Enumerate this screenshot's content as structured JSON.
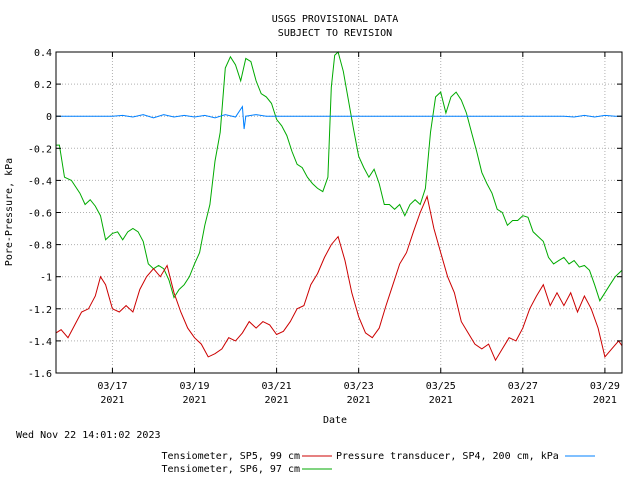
{
  "header": {
    "title_line1": "USGS PROVISIONAL DATA",
    "title_line2": "SUBJECT TO REVISION"
  },
  "footer": {
    "timestamp": "Wed Nov 22 14:01:02 2023"
  },
  "colors": {
    "sp5": "#cc0000",
    "sp6": "#00aa00",
    "sp4": "#0080ff",
    "grid": "#b0b0b0",
    "axes": "#000000"
  },
  "chart_data": {
    "type": "line",
    "xlabel": "Date",
    "ylabel": "Pore-Pressure, kPa",
    "grid": true,
    "legend_placement": "bottom",
    "ylim": [
      -1.6,
      0.4
    ],
    "y_ticks": [
      "0.4",
      "0.2",
      "0",
      "-0.2",
      "-0.4",
      "-0.6",
      "-0.8",
      "-1",
      "-1.2",
      "-1.4",
      "-1.6"
    ],
    "x_ticks": [
      {
        "date": "2021-03-17",
        "label": "03/17",
        "year": "2021"
      },
      {
        "date": "2021-03-19",
        "label": "03/19",
        "year": "2021"
      },
      {
        "date": "2021-03-21",
        "label": "03/21",
        "year": "2021"
      },
      {
        "date": "2021-03-23",
        "label": "03/23",
        "year": "2021"
      },
      {
        "date": "2021-03-25",
        "label": "03/25",
        "year": "2021"
      },
      {
        "date": "2021-03-27",
        "label": "03/27",
        "year": "2021"
      },
      {
        "date": "2021-03-29",
        "label": "03/29",
        "year": "2021"
      }
    ],
    "xlim": [
      "2021-03-15T15:00",
      "2021-03-29T10:00"
    ],
    "legend": [
      {
        "key": "sp5",
        "label": "Tensiometer, SP5, 99 cm"
      },
      {
        "key": "sp4",
        "label": "Pressure transducer, SP4, 200 cm, kPa"
      },
      {
        "key": "sp6",
        "label": "Tensiometer, SP6, 97 cm"
      }
    ],
    "series": [
      {
        "key": "sp6",
        "name": "Tensiometer, SP6, 97 cm",
        "points": [
          [
            "2021-03-15T15:00",
            -0.18
          ],
          [
            "2021-03-15T17:00",
            -0.18
          ],
          [
            "2021-03-15T20:00",
            -0.38
          ],
          [
            "2021-03-16T00:00",
            -0.4
          ],
          [
            "2021-03-16T05:00",
            -0.48
          ],
          [
            "2021-03-16T08:00",
            -0.55
          ],
          [
            "2021-03-16T11:00",
            -0.52
          ],
          [
            "2021-03-16T14:00",
            -0.56
          ],
          [
            "2021-03-16T17:00",
            -0.62
          ],
          [
            "2021-03-16T20:00",
            -0.77
          ],
          [
            "2021-03-17T00:00",
            -0.73
          ],
          [
            "2021-03-17T03:00",
            -0.72
          ],
          [
            "2021-03-17T06:00",
            -0.77
          ],
          [
            "2021-03-17T09:00",
            -0.72
          ],
          [
            "2021-03-17T12:00",
            -0.7
          ],
          [
            "2021-03-17T15:00",
            -0.72
          ],
          [
            "2021-03-17T18:00",
            -0.78
          ],
          [
            "2021-03-17T21:00",
            -0.92
          ],
          [
            "2021-03-18T00:00",
            -0.95
          ],
          [
            "2021-03-18T03:00",
            -0.93
          ],
          [
            "2021-03-18T06:00",
            -0.95
          ],
          [
            "2021-03-18T09:00",
            -1.02
          ],
          [
            "2021-03-18T12:00",
            -1.13
          ],
          [
            "2021-03-18T15:00",
            -1.08
          ],
          [
            "2021-03-18T18:00",
            -1.05
          ],
          [
            "2021-03-18T21:00",
            -1.0
          ],
          [
            "2021-03-19T00:00",
            -0.92
          ],
          [
            "2021-03-19T03:00",
            -0.85
          ],
          [
            "2021-03-19T06:00",
            -0.68
          ],
          [
            "2021-03-19T09:00",
            -0.55
          ],
          [
            "2021-03-19T12:00",
            -0.28
          ],
          [
            "2021-03-19T15:00",
            -0.1
          ],
          [
            "2021-03-19T18:00",
            0.3
          ],
          [
            "2021-03-19T21:00",
            0.37
          ],
          [
            "2021-03-20T00:00",
            0.32
          ],
          [
            "2021-03-20T03:00",
            0.22
          ],
          [
            "2021-03-20T06:00",
            0.36
          ],
          [
            "2021-03-20T09:00",
            0.34
          ],
          [
            "2021-03-20T12:00",
            0.22
          ],
          [
            "2021-03-20T15:00",
            0.14
          ],
          [
            "2021-03-20T18:00",
            0.12
          ],
          [
            "2021-03-20T21:00",
            0.08
          ],
          [
            "2021-03-21T00:00",
            -0.02
          ],
          [
            "2021-03-21T03:00",
            -0.06
          ],
          [
            "2021-03-21T06:00",
            -0.12
          ],
          [
            "2021-03-21T09:00",
            -0.22
          ],
          [
            "2021-03-21T12:00",
            -0.3
          ],
          [
            "2021-03-21T15:00",
            -0.32
          ],
          [
            "2021-03-21T18:00",
            -0.38
          ],
          [
            "2021-03-21T21:00",
            -0.42
          ],
          [
            "2021-03-22T00:00",
            -0.45
          ],
          [
            "2021-03-22T03:00",
            -0.47
          ],
          [
            "2021-03-22T06:00",
            -0.38
          ],
          [
            "2021-03-22T08:00",
            0.18
          ],
          [
            "2021-03-22T10:00",
            0.38
          ],
          [
            "2021-03-22T12:00",
            0.4
          ],
          [
            "2021-03-22T15:00",
            0.28
          ],
          [
            "2021-03-22T18:00",
            0.1
          ],
          [
            "2021-03-22T21:00",
            -0.08
          ],
          [
            "2021-03-23T00:00",
            -0.25
          ],
          [
            "2021-03-23T03:00",
            -0.32
          ],
          [
            "2021-03-23T06:00",
            -0.38
          ],
          [
            "2021-03-23T09:00",
            -0.33
          ],
          [
            "2021-03-23T12:00",
            -0.42
          ],
          [
            "2021-03-23T15:00",
            -0.55
          ],
          [
            "2021-03-23T18:00",
            -0.55
          ],
          [
            "2021-03-23T21:00",
            -0.58
          ],
          [
            "2021-03-24T00:00",
            -0.55
          ],
          [
            "2021-03-24T03:00",
            -0.62
          ],
          [
            "2021-03-24T06:00",
            -0.55
          ],
          [
            "2021-03-24T09:00",
            -0.52
          ],
          [
            "2021-03-24T12:00",
            -0.55
          ],
          [
            "2021-03-24T15:00",
            -0.45
          ],
          [
            "2021-03-24T18:00",
            -0.1
          ],
          [
            "2021-03-24T21:00",
            0.12
          ],
          [
            "2021-03-25T00:00",
            0.15
          ],
          [
            "2021-03-25T03:00",
            0.02
          ],
          [
            "2021-03-25T06:00",
            0.12
          ],
          [
            "2021-03-25T09:00",
            0.15
          ],
          [
            "2021-03-25T12:00",
            0.1
          ],
          [
            "2021-03-25T15:00",
            0.02
          ],
          [
            "2021-03-25T18:00",
            -0.1
          ],
          [
            "2021-03-25T21:00",
            -0.22
          ],
          [
            "2021-03-26T00:00",
            -0.35
          ],
          [
            "2021-03-26T03:00",
            -0.42
          ],
          [
            "2021-03-26T06:00",
            -0.48
          ],
          [
            "2021-03-26T09:00",
            -0.58
          ],
          [
            "2021-03-26T12:00",
            -0.6
          ],
          [
            "2021-03-26T15:00",
            -0.68
          ],
          [
            "2021-03-26T18:00",
            -0.65
          ],
          [
            "2021-03-26T21:00",
            -0.65
          ],
          [
            "2021-03-27T00:00",
            -0.62
          ],
          [
            "2021-03-27T03:00",
            -0.63
          ],
          [
            "2021-03-27T06:00",
            -0.72
          ],
          [
            "2021-03-27T09:00",
            -0.75
          ],
          [
            "2021-03-27T12:00",
            -0.78
          ],
          [
            "2021-03-27T15:00",
            -0.88
          ],
          [
            "2021-03-27T18:00",
            -0.92
          ],
          [
            "2021-03-27T21:00",
            -0.9
          ],
          [
            "2021-03-28T00:00",
            -0.88
          ],
          [
            "2021-03-28T03:00",
            -0.92
          ],
          [
            "2021-03-28T06:00",
            -0.9
          ],
          [
            "2021-03-28T09:00",
            -0.94
          ],
          [
            "2021-03-28T12:00",
            -0.93
          ],
          [
            "2021-03-28T15:00",
            -0.96
          ],
          [
            "2021-03-28T18:00",
            -1.05
          ],
          [
            "2021-03-28T21:00",
            -1.15
          ],
          [
            "2021-03-29T00:00",
            -1.1
          ],
          [
            "2021-03-29T03:00",
            -1.05
          ],
          [
            "2021-03-29T06:00",
            -1.0
          ],
          [
            "2021-03-29T10:00",
            -0.96
          ]
        ]
      },
      {
        "key": "sp5",
        "name": "Tensiometer, SP5, 99 cm",
        "points": [
          [
            "2021-03-15T15:00",
            -1.35
          ],
          [
            "2021-03-15T18:00",
            -1.33
          ],
          [
            "2021-03-15T22:00",
            -1.38
          ],
          [
            "2021-03-16T02:00",
            -1.3
          ],
          [
            "2021-03-16T06:00",
            -1.22
          ],
          [
            "2021-03-16T10:00",
            -1.2
          ],
          [
            "2021-03-16T14:00",
            -1.12
          ],
          [
            "2021-03-16T17:00",
            -1.0
          ],
          [
            "2021-03-16T20:00",
            -1.05
          ],
          [
            "2021-03-17T00:00",
            -1.2
          ],
          [
            "2021-03-17T04:00",
            -1.22
          ],
          [
            "2021-03-17T08:00",
            -1.18
          ],
          [
            "2021-03-17T12:00",
            -1.22
          ],
          [
            "2021-03-17T16:00",
            -1.08
          ],
          [
            "2021-03-17T20:00",
            -1.0
          ],
          [
            "2021-03-18T00:00",
            -0.95
          ],
          [
            "2021-03-18T04:00",
            -1.0
          ],
          [
            "2021-03-18T08:00",
            -0.93
          ],
          [
            "2021-03-18T12:00",
            -1.1
          ],
          [
            "2021-03-18T16:00",
            -1.22
          ],
          [
            "2021-03-18T20:00",
            -1.32
          ],
          [
            "2021-03-19T00:00",
            -1.38
          ],
          [
            "2021-03-19T04:00",
            -1.42
          ],
          [
            "2021-03-19T08:00",
            -1.5
          ],
          [
            "2021-03-19T12:00",
            -1.48
          ],
          [
            "2021-03-19T16:00",
            -1.45
          ],
          [
            "2021-03-19T20:00",
            -1.38
          ],
          [
            "2021-03-20T00:00",
            -1.4
          ],
          [
            "2021-03-20T04:00",
            -1.35
          ],
          [
            "2021-03-20T08:00",
            -1.28
          ],
          [
            "2021-03-20T12:00",
            -1.32
          ],
          [
            "2021-03-20T16:00",
            -1.28
          ],
          [
            "2021-03-20T20:00",
            -1.3
          ],
          [
            "2021-03-21T00:00",
            -1.36
          ],
          [
            "2021-03-21T04:00",
            -1.34
          ],
          [
            "2021-03-21T08:00",
            -1.28
          ],
          [
            "2021-03-21T12:00",
            -1.2
          ],
          [
            "2021-03-21T16:00",
            -1.18
          ],
          [
            "2021-03-21T20:00",
            -1.05
          ],
          [
            "2021-03-22T00:00",
            -0.98
          ],
          [
            "2021-03-22T04:00",
            -0.88
          ],
          [
            "2021-03-22T08:00",
            -0.8
          ],
          [
            "2021-03-22T12:00",
            -0.75
          ],
          [
            "2021-03-22T16:00",
            -0.9
          ],
          [
            "2021-03-22T20:00",
            -1.1
          ],
          [
            "2021-03-23T00:00",
            -1.25
          ],
          [
            "2021-03-23T04:00",
            -1.35
          ],
          [
            "2021-03-23T08:00",
            -1.38
          ],
          [
            "2021-03-23T12:00",
            -1.32
          ],
          [
            "2021-03-23T16:00",
            -1.18
          ],
          [
            "2021-03-23T20:00",
            -1.05
          ],
          [
            "2021-03-24T00:00",
            -0.92
          ],
          [
            "2021-03-24T04:00",
            -0.85
          ],
          [
            "2021-03-24T08:00",
            -0.72
          ],
          [
            "2021-03-24T12:00",
            -0.6
          ],
          [
            "2021-03-24T16:00",
            -0.5
          ],
          [
            "2021-03-24T20:00",
            -0.7
          ],
          [
            "2021-03-25T00:00",
            -0.85
          ],
          [
            "2021-03-25T04:00",
            -1.0
          ],
          [
            "2021-03-25T08:00",
            -1.1
          ],
          [
            "2021-03-25T12:00",
            -1.28
          ],
          [
            "2021-03-25T16:00",
            -1.35
          ],
          [
            "2021-03-25T20:00",
            -1.42
          ],
          [
            "2021-03-26T00:00",
            -1.45
          ],
          [
            "2021-03-26T04:00",
            -1.42
          ],
          [
            "2021-03-26T08:00",
            -1.52
          ],
          [
            "2021-03-26T12:00",
            -1.45
          ],
          [
            "2021-03-26T16:00",
            -1.38
          ],
          [
            "2021-03-26T20:00",
            -1.4
          ],
          [
            "2021-03-27T00:00",
            -1.32
          ],
          [
            "2021-03-27T04:00",
            -1.2
          ],
          [
            "2021-03-27T08:00",
            -1.12
          ],
          [
            "2021-03-27T12:00",
            -1.05
          ],
          [
            "2021-03-27T16:00",
            -1.18
          ],
          [
            "2021-03-27T20:00",
            -1.1
          ],
          [
            "2021-03-28T00:00",
            -1.18
          ],
          [
            "2021-03-28T04:00",
            -1.1
          ],
          [
            "2021-03-28T08:00",
            -1.22
          ],
          [
            "2021-03-28T12:00",
            -1.12
          ],
          [
            "2021-03-28T16:00",
            -1.2
          ],
          [
            "2021-03-28T20:00",
            -1.32
          ],
          [
            "2021-03-29T00:00",
            -1.5
          ],
          [
            "2021-03-29T04:00",
            -1.45
          ],
          [
            "2021-03-29T08:00",
            -1.4
          ],
          [
            "2021-03-29T10:00",
            -1.43
          ]
        ]
      },
      {
        "key": "sp4",
        "name": "Pressure transducer, SP4, 200 cm, kPa",
        "points": [
          [
            "2021-03-15T15:00",
            0.0
          ],
          [
            "2021-03-17T00:00",
            0.0
          ],
          [
            "2021-03-17T06:00",
            0.005
          ],
          [
            "2021-03-17T12:00",
            -0.005
          ],
          [
            "2021-03-17T18:00",
            0.01
          ],
          [
            "2021-03-18T00:00",
            -0.01
          ],
          [
            "2021-03-18T06:00",
            0.01
          ],
          [
            "2021-03-18T12:00",
            -0.005
          ],
          [
            "2021-03-18T18:00",
            0.005
          ],
          [
            "2021-03-19T00:00",
            -0.005
          ],
          [
            "2021-03-19T06:00",
            0.005
          ],
          [
            "2021-03-19T12:00",
            -0.01
          ],
          [
            "2021-03-19T18:00",
            0.01
          ],
          [
            "2021-03-20T00:00",
            -0.005
          ],
          [
            "2021-03-20T04:00",
            0.06
          ],
          [
            "2021-03-20T05:00",
            -0.08
          ],
          [
            "2021-03-20T06:00",
            0.0
          ],
          [
            "2021-03-20T12:00",
            0.01
          ],
          [
            "2021-03-20T18:00",
            0.0
          ],
          [
            "2021-03-21T06:00",
            0.0
          ],
          [
            "2021-03-28T00:00",
            0.0
          ],
          [
            "2021-03-28T06:00",
            -0.005
          ],
          [
            "2021-03-28T12:00",
            0.005
          ],
          [
            "2021-03-28T18:00",
            -0.005
          ],
          [
            "2021-03-29T00:00",
            0.005
          ],
          [
            "2021-03-29T06:00",
            0.0
          ],
          [
            "2021-03-29T10:00",
            0.0
          ]
        ]
      }
    ]
  }
}
